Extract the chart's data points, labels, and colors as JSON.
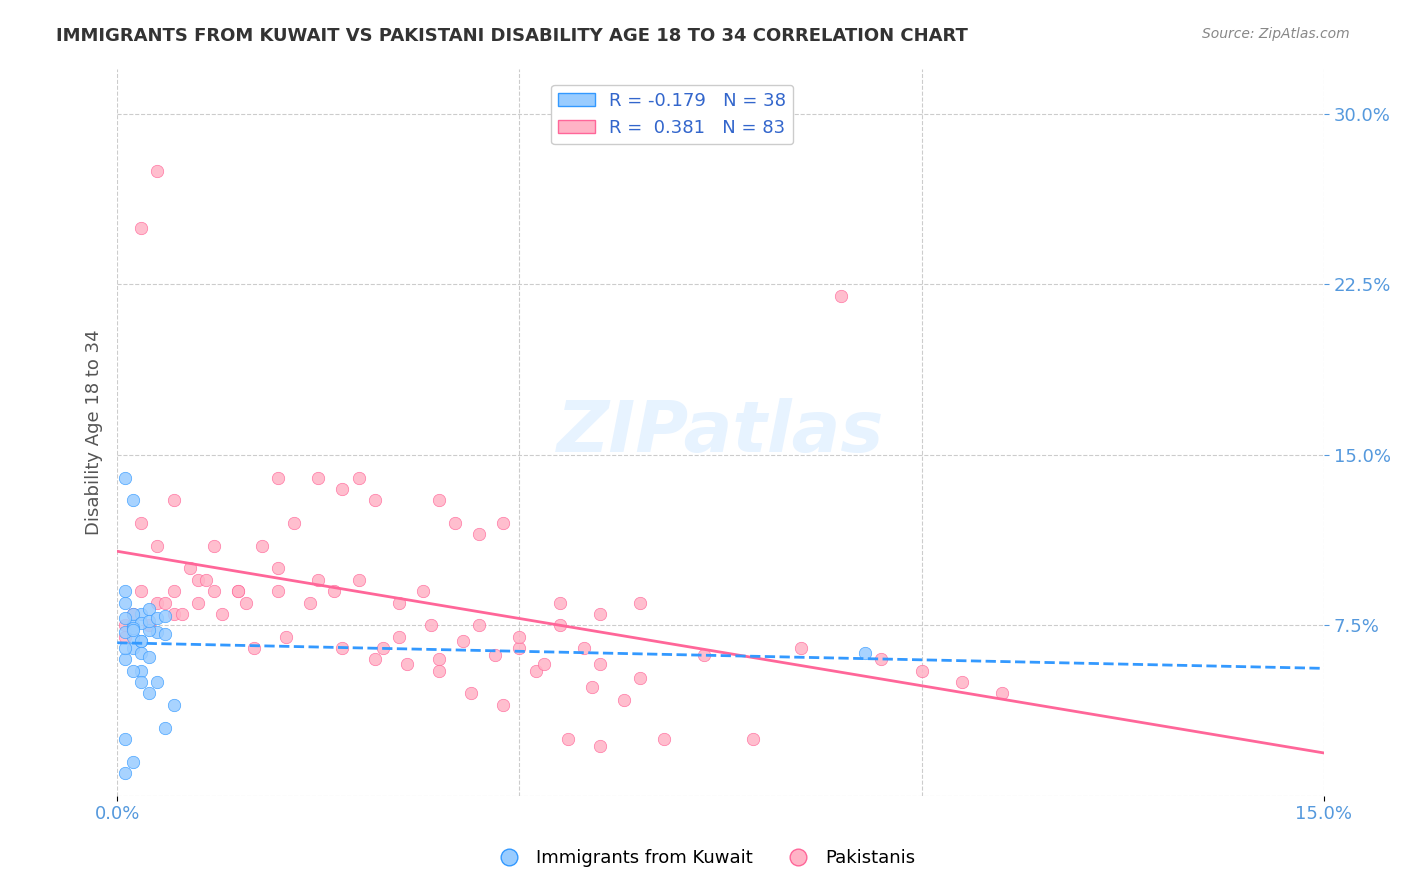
{
  "title": "IMMIGRANTS FROM KUWAIT VS PAKISTANI DISABILITY AGE 18 TO 34 CORRELATION CHART",
  "source": "Source: ZipAtlas.com",
  "xlabel": "",
  "ylabel": "Disability Age 18 to 34",
  "xlim": [
    0.0,
    0.15
  ],
  "ylim": [
    0.0,
    0.32
  ],
  "xtick_labels": [
    "0.0%",
    "15.0%"
  ],
  "ytick_labels": [
    "7.5%",
    "15.0%",
    "22.5%",
    "30.0%"
  ],
  "ytick_positions": [
    0.075,
    0.15,
    0.225,
    0.3
  ],
  "legend_r_kuwait": "-0.179",
  "legend_n_kuwait": "38",
  "legend_r_pakistani": "0.381",
  "legend_n_pakistani": "83",
  "color_kuwait": "#99CCFF",
  "color_pakistani": "#FFB3C6",
  "line_color_kuwait": "#3399FF",
  "line_color_pakistani": "#FF6699",
  "watermark": "ZIPatlas",
  "kuwait_x": [
    0.001,
    0.002,
    0.003,
    0.001,
    0.004,
    0.005,
    0.002,
    0.003,
    0.004,
    0.006,
    0.001,
    0.002,
    0.003,
    0.004,
    0.005,
    0.006,
    0.007,
    0.002,
    0.003,
    0.004,
    0.005,
    0.006,
    0.001,
    0.002,
    0.003,
    0.001,
    0.002,
    0.003,
    0.001,
    0.002,
    0.003,
    0.004,
    0.001,
    0.001,
    0.002,
    0.093,
    0.001,
    0.002
  ],
  "kuwait_y": [
    0.085,
    0.075,
    0.08,
    0.09,
    0.082,
    0.072,
    0.065,
    0.068,
    0.073,
    0.071,
    0.14,
    0.13,
    0.055,
    0.045,
    0.05,
    0.03,
    0.04,
    0.08,
    0.076,
    0.077,
    0.078,
    0.079,
    0.06,
    0.055,
    0.05,
    0.065,
    0.07,
    0.068,
    0.072,
    0.074,
    0.063,
    0.061,
    0.025,
    0.01,
    0.015,
    0.063,
    0.078,
    0.073
  ],
  "pakistani_x": [
    0.001,
    0.003,
    0.005,
    0.007,
    0.01,
    0.012,
    0.015,
    0.018,
    0.02,
    0.022,
    0.025,
    0.028,
    0.03,
    0.032,
    0.035,
    0.038,
    0.04,
    0.042,
    0.045,
    0.048,
    0.05,
    0.055,
    0.058,
    0.06,
    0.065,
    0.003,
    0.005,
    0.007,
    0.01,
    0.015,
    0.02,
    0.025,
    0.03,
    0.035,
    0.04,
    0.045,
    0.05,
    0.055,
    0.06,
    0.065,
    0.002,
    0.004,
    0.006,
    0.008,
    0.012,
    0.016,
    0.02,
    0.024,
    0.028,
    0.032,
    0.036,
    0.04,
    0.044,
    0.048,
    0.052,
    0.056,
    0.06,
    0.001,
    0.003,
    0.005,
    0.007,
    0.009,
    0.011,
    0.013,
    0.017,
    0.021,
    0.027,
    0.033,
    0.039,
    0.043,
    0.047,
    0.053,
    0.059,
    0.063,
    0.068,
    0.073,
    0.079,
    0.085,
    0.09,
    0.095,
    0.1,
    0.105,
    0.11
  ],
  "pakistani_y": [
    0.075,
    0.12,
    0.085,
    0.13,
    0.095,
    0.11,
    0.09,
    0.11,
    0.14,
    0.12,
    0.14,
    0.135,
    0.14,
    0.13,
    0.085,
    0.09,
    0.13,
    0.12,
    0.115,
    0.12,
    0.065,
    0.075,
    0.065,
    0.08,
    0.085,
    0.25,
    0.275,
    0.08,
    0.085,
    0.09,
    0.1,
    0.095,
    0.095,
    0.07,
    0.06,
    0.075,
    0.07,
    0.085,
    0.058,
    0.052,
    0.08,
    0.075,
    0.085,
    0.08,
    0.09,
    0.085,
    0.09,
    0.085,
    0.065,
    0.06,
    0.058,
    0.055,
    0.045,
    0.04,
    0.055,
    0.025,
    0.022,
    0.07,
    0.09,
    0.11,
    0.09,
    0.1,
    0.095,
    0.08,
    0.065,
    0.07,
    0.09,
    0.065,
    0.075,
    0.068,
    0.062,
    0.058,
    0.048,
    0.042,
    0.025,
    0.062,
    0.025,
    0.065,
    0.22,
    0.06,
    0.055,
    0.05,
    0.045
  ]
}
